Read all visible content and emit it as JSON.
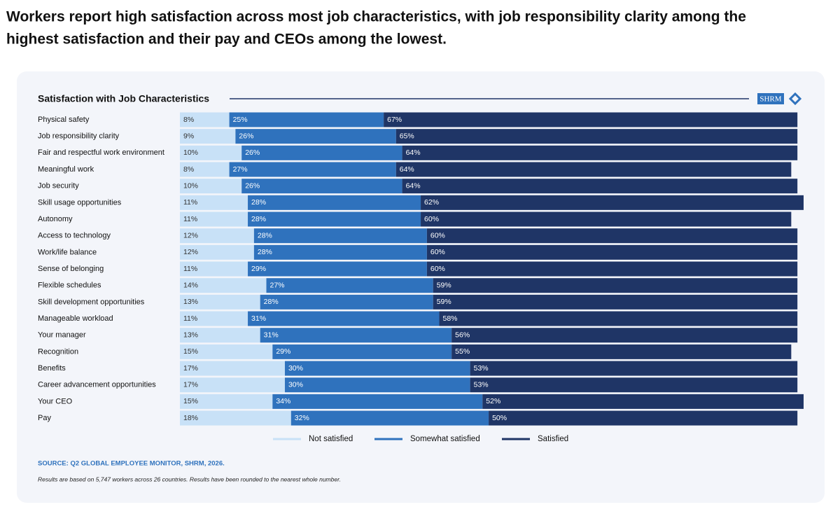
{
  "headline": [
    "Workers report high satisfaction across most job characteristics, with job responsibility clarity among the",
    "highest satisfaction and their pay and CEOs among the lowest."
  ],
  "chart_data": {
    "type": "stacked-bar-horizontal",
    "title": "Satisfaction with Job Characteristics",
    "logo": "SHRM",
    "categories": [
      "Physical safety",
      "Job responsibility clarity",
      "Fair and respectful work environment",
      "Meaningful work",
      "Job security",
      "Skill usage opportunities",
      "Autonomy",
      "Access to technology",
      "Work/life balance",
      "Sense of belonging",
      "Flexible schedules",
      "Skill development opportunities",
      "Manageable workload",
      "Your manager",
      "Recognition",
      "Benefits",
      "Career advancement opportunities",
      "Your CEO",
      "Pay"
    ],
    "series": [
      {
        "name": "Not satisfied",
        "color": "#c8e1f7",
        "text_color": "#333333",
        "values": [
          8,
          9,
          10,
          8,
          10,
          11,
          11,
          12,
          12,
          11,
          14,
          13,
          11,
          13,
          15,
          17,
          17,
          15,
          18
        ],
        "value_labels": [
          "8%",
          "9%",
          "10%",
          "8%",
          "10%",
          "11%",
          "11%",
          "12%",
          "12%",
          "11%",
          "14%",
          "13%",
          "11%",
          "13%",
          "15%",
          "17%",
          "17%",
          "15%",
          "18%"
        ]
      },
      {
        "name": "Somewhat satisfied",
        "color": "#2f72bd",
        "text_color": "#ffffff",
        "values": [
          25,
          26,
          26,
          27,
          26,
          28,
          28,
          28,
          28,
          29,
          27,
          28,
          31,
          31,
          29,
          30,
          30,
          34,
          32
        ],
        "value_labels": [
          "25%",
          "26%",
          "26%",
          "27%",
          "26%",
          "28%",
          "28%",
          "28%",
          "28%",
          "29%",
          "27%",
          "28%",
          "31%",
          "31%",
          "29%",
          "30%",
          "30%",
          "34%",
          "32%"
        ]
      },
      {
        "name": "Satisfied",
        "color": "#1f3566",
        "text_color": "#ffffff",
        "values": [
          67,
          65,
          64,
          64,
          64,
          62,
          60,
          60,
          60,
          60,
          59,
          59,
          58,
          56,
          55,
          53,
          53,
          52,
          50
        ],
        "value_labels": [
          "67%",
          "65%",
          "64%",
          "64%",
          "64%",
          "62%",
          "60%",
          "60%",
          "60%",
          "60%",
          "59%",
          "59%",
          "58%",
          "56%",
          "55%",
          "53%",
          "53%",
          "52%",
          "50%"
        ]
      }
    ],
    "source": "SOURCE: Q2 GLOBAL EMPLOYEE MONITOR, SHRM, 2026.",
    "note": "Results are based on 5,747 workers across 26 countries. Results have been rounded to the nearest whole number."
  }
}
